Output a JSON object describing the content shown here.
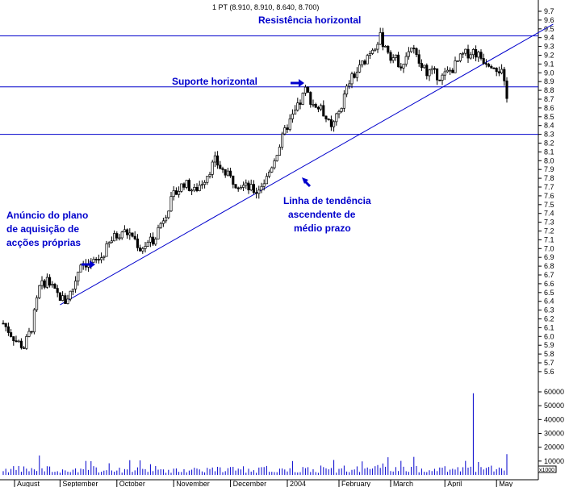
{
  "chart_data": {
    "type": "candlestick",
    "header": "1 PT (8.910, 8.910, 8.640, 8.700)",
    "price_axis": {
      "ticks": [
        "9.7",
        "9.6",
        "9.5",
        "9.4",
        "9.3",
        "9.2",
        "9.1",
        "9.0",
        "8.9",
        "8.8",
        "8.7",
        "8.6",
        "8.5",
        "8.4",
        "8.3",
        "8.2",
        "8.1",
        "8.0",
        "7.9",
        "7.8",
        "7.7",
        "7.6",
        "7.5",
        "7.4",
        "7.3",
        "7.2",
        "7.1",
        "7.0",
        "6.9",
        "6.8",
        "6.7",
        "6.6",
        "6.5",
        "6.4",
        "6.3",
        "6.2",
        "6.1",
        "6.0",
        "5.9",
        "5.8",
        "5.7",
        "5.6"
      ],
      "range": [
        5.6,
        9.7
      ]
    },
    "volume_axis": {
      "ticks": [
        "60000",
        "50000",
        "40000",
        "30000",
        "20000",
        "10000"
      ],
      "unit": "x1000",
      "range": [
        0,
        60000
      ]
    },
    "months": [
      "August",
      "September",
      "October",
      "November",
      "December",
      "2004",
      "February",
      "March",
      "April",
      "May"
    ],
    "horizontal_lines": [
      {
        "name": "resistencia",
        "price": 9.42
      },
      {
        "name": "suporte",
        "price": 8.84
      },
      {
        "name": "lower",
        "price": 8.3
      }
    ],
    "trendline": {
      "from": {
        "day": 22,
        "price": 6.36
      },
      "to": {
        "day": 202,
        "price": 9.48
      }
    },
    "anchors": [
      {
        "day": 0,
        "price": 6.15
      },
      {
        "day": 5,
        "price": 5.95
      },
      {
        "day": 8,
        "price": 5.88
      },
      {
        "day": 11,
        "price": 6.1
      },
      {
        "day": 14,
        "price": 6.55
      },
      {
        "day": 17,
        "price": 6.65
      },
      {
        "day": 20,
        "price": 6.5
      },
      {
        "day": 24,
        "price": 6.4
      },
      {
        "day": 27,
        "price": 6.55
      },
      {
        "day": 30,
        "price": 6.85
      },
      {
        "day": 34,
        "price": 6.82
      },
      {
        "day": 38,
        "price": 6.9
      },
      {
        "day": 42,
        "price": 7.1
      },
      {
        "day": 46,
        "price": 7.2
      },
      {
        "day": 50,
        "price": 7.15
      },
      {
        "day": 53,
        "price": 7.0
      },
      {
        "day": 58,
        "price": 7.1
      },
      {
        "day": 62,
        "price": 7.35
      },
      {
        "day": 66,
        "price": 7.6
      },
      {
        "day": 70,
        "price": 7.75
      },
      {
        "day": 74,
        "price": 7.65
      },
      {
        "day": 78,
        "price": 7.8
      },
      {
        "day": 82,
        "price": 8.0
      },
      {
        "day": 86,
        "price": 7.85
      },
      {
        "day": 90,
        "price": 7.75
      },
      {
        "day": 94,
        "price": 7.7
      },
      {
        "day": 98,
        "price": 7.65
      },
      {
        "day": 102,
        "price": 7.8
      },
      {
        "day": 106,
        "price": 8.1
      },
      {
        "day": 110,
        "price": 8.4
      },
      {
        "day": 114,
        "price": 8.6
      },
      {
        "day": 117,
        "price": 8.8
      },
      {
        "day": 120,
        "price": 8.65
      },
      {
        "day": 124,
        "price": 8.55
      },
      {
        "day": 127,
        "price": 8.35
      },
      {
        "day": 130,
        "price": 8.55
      },
      {
        "day": 134,
        "price": 8.9
      },
      {
        "day": 138,
        "price": 9.05
      },
      {
        "day": 142,
        "price": 9.25
      },
      {
        "day": 146,
        "price": 9.4
      },
      {
        "day": 150,
        "price": 9.2
      },
      {
        "day": 154,
        "price": 9.1
      },
      {
        "day": 158,
        "price": 9.3
      },
      {
        "day": 162,
        "price": 9.05
      },
      {
        "day": 166,
        "price": 9.0
      },
      {
        "day": 170,
        "price": 8.95
      },
      {
        "day": 174,
        "price": 9.05
      },
      {
        "day": 178,
        "price": 9.2
      },
      {
        "day": 182,
        "price": 9.25
      },
      {
        "day": 186,
        "price": 9.15
      },
      {
        "day": 190,
        "price": 9.1
      },
      {
        "day": 193,
        "price": 9.0
      },
      {
        "day": 195,
        "price": 8.7
      }
    ]
  },
  "annotations": {
    "resistencia": "Resistência horizontal",
    "suporte": "Suporte horizontal",
    "tendencia_1": "Linha de tendência",
    "tendencia_2": "ascendente de",
    "tendencia_3": "médio prazo",
    "anuncio_1": "Anúncio do plano",
    "anuncio_2": "de aquisição de",
    "anuncio_3": "acções próprias"
  },
  "colors": {
    "lines": "#0000cc",
    "candles": "#000000",
    "text": "#0000cc"
  }
}
